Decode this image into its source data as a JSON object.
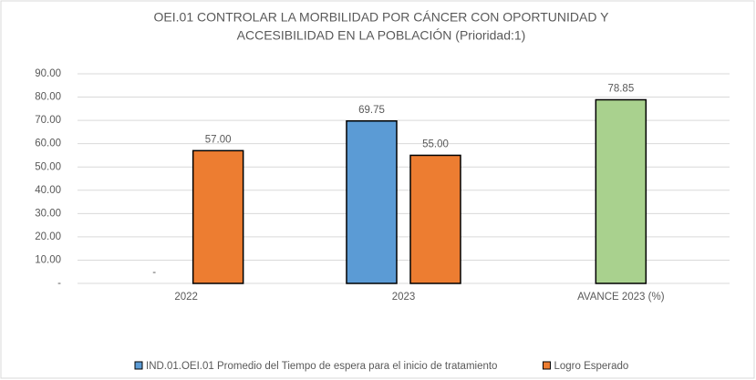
{
  "chart_data": {
    "type": "bar",
    "title": [
      "OEI.01 CONTROLAR LA MORBILIDAD POR CÁNCER CON OPORTUNIDAD Y",
      "ACCESIBILIDAD EN LA POBLACIÓN (Prioridad:1)"
    ],
    "categories": [
      "2022",
      "2023",
      "AVANCE 2023 (%)"
    ],
    "series": [
      {
        "name": "IND.01.OEI.01 Promedio del Tiempo de espera para el inicio de tratamiento",
        "color": "#5b9bd5",
        "values": [
          0,
          69.75,
          null
        ],
        "value_labels": [
          "-",
          "69.75",
          null
        ]
      },
      {
        "name": "Logro Esperado",
        "color": "#ed7d31",
        "values": [
          57,
          55,
          null
        ],
        "value_labels": [
          "57.00",
          "55.00",
          null
        ]
      },
      {
        "color": "#a9d18e",
        "values": [
          null,
          null,
          78.85
        ],
        "value_labels": [
          null,
          null,
          "78.85"
        ]
      }
    ],
    "ylim": [
      0,
      90
    ],
    "yticks": [
      {
        "value": 0,
        "label": "-"
      },
      {
        "value": 10,
        "label": "10.00"
      },
      {
        "value": 20,
        "label": "20.00"
      },
      {
        "value": 30,
        "label": "30.00"
      },
      {
        "value": 40,
        "label": "40.00"
      },
      {
        "value": 50,
        "label": "50.00"
      },
      {
        "value": 60,
        "label": "60.00"
      },
      {
        "value": 70,
        "label": "70.00"
      },
      {
        "value": 80,
        "label": "80.00"
      },
      {
        "value": 90,
        "label": "90.00"
      }
    ],
    "grid": true
  }
}
